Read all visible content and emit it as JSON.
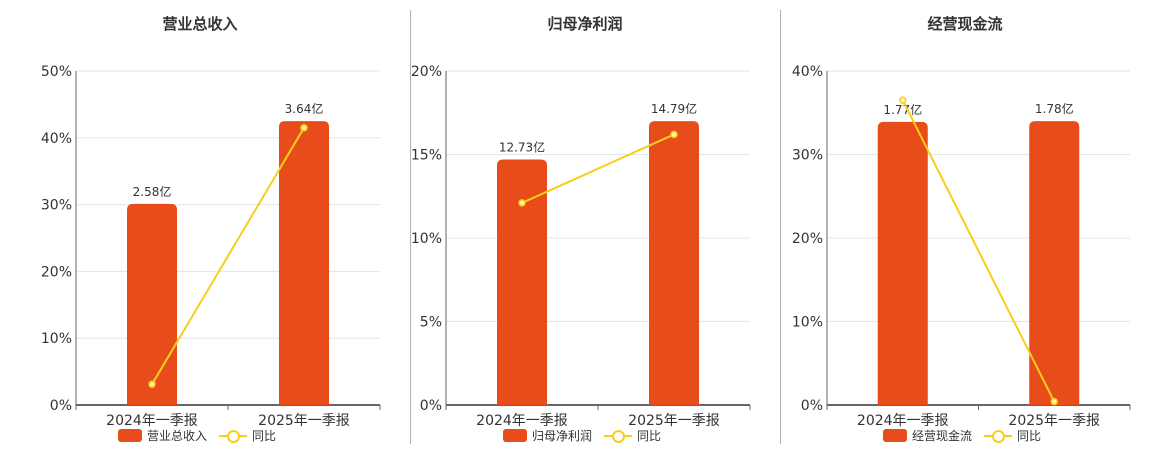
{
  "colors": {
    "bar": "#e84c1a",
    "line": "#f5cf1a",
    "grid": "#e0e6ee",
    "axis": "#666666"
  },
  "legend": {
    "line_label": "同比"
  },
  "chart_data": [
    {
      "type": "bar",
      "title": "营业总收入",
      "categories": [
        "2024年一季报",
        "2025年一季报"
      ],
      "series": [
        {
          "name": "营业总收入",
          "type": "bar",
          "values": [
            2.58,
            3.64
          ],
          "labels": [
            "2.58亿",
            "3.64亿"
          ],
          "unit": "亿"
        },
        {
          "name": "同比",
          "type": "line",
          "values": [
            3.1,
            41.5
          ],
          "unit": "%"
        }
      ],
      "yticks": [
        "0%",
        "10%",
        "20%",
        "30%",
        "40%",
        "50%"
      ],
      "ylim": [
        0,
        50
      ],
      "bar_heights_pct": [
        30.1,
        42.5
      ],
      "grid": true,
      "legend_position": "bottom"
    },
    {
      "type": "bar",
      "title": "归母净利润",
      "categories": [
        "2024年一季报",
        "2025年一季报"
      ],
      "series": [
        {
          "name": "归母净利润",
          "type": "bar",
          "values": [
            12.73,
            14.79
          ],
          "labels": [
            "12.73亿",
            "14.79亿"
          ],
          "unit": "亿"
        },
        {
          "name": "同比",
          "type": "line",
          "values": [
            12.1,
            16.2
          ],
          "unit": "%"
        }
      ],
      "yticks": [
        "0%",
        "5%",
        "10%",
        "15%",
        "20%"
      ],
      "ylim": [
        0,
        20
      ],
      "bar_heights_pct": [
        14.7,
        17.0
      ],
      "grid": true,
      "legend_position": "bottom"
    },
    {
      "type": "bar",
      "title": "经营现金流",
      "categories": [
        "2024年一季报",
        "2025年一季报"
      ],
      "series": [
        {
          "name": "经营现金流",
          "type": "bar",
          "values": [
            1.77,
            1.78
          ],
          "labels": [
            "1.77亿",
            "1.78亿"
          ],
          "unit": "亿"
        },
        {
          "name": "同比",
          "type": "line",
          "values": [
            36.5,
            0.4
          ],
          "unit": "%"
        }
      ],
      "yticks": [
        "0%",
        "10%",
        "20%",
        "30%",
        "40%"
      ],
      "ylim": [
        0,
        40
      ],
      "bar_heights_pct": [
        33.9,
        34.0
      ],
      "grid": true,
      "legend_position": "bottom"
    }
  ]
}
